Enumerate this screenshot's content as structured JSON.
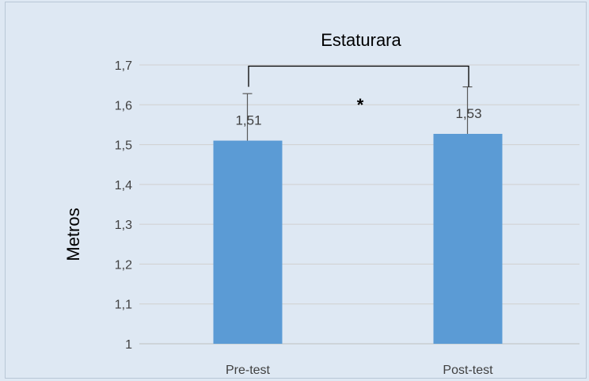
{
  "chart_data": {
    "type": "bar",
    "title": "Estaturara",
    "xlabel": "",
    "ylabel": "Metros",
    "categories": [
      "Pre-test",
      "Post-test"
    ],
    "values": [
      1.51,
      1.527
    ],
    "data_labels": [
      "1,51",
      "1,53"
    ],
    "error": [
      0.118,
      0.118
    ],
    "ylim": [
      1,
      1.7
    ],
    "yticks": [
      1,
      1.1,
      1.2,
      1.3,
      1.4,
      1.5,
      1.6,
      1.7
    ],
    "ytick_labels": [
      "1",
      "1,1",
      "1,2",
      "1,3",
      "1,4",
      "1,5",
      "1,6",
      "1,7"
    ],
    "grid": true,
    "legend": "none",
    "bar_color": "#5b9bd5",
    "significance": {
      "between": [
        0,
        1
      ],
      "y": 1.697,
      "tick_to": 1.645,
      "label": "*"
    }
  }
}
